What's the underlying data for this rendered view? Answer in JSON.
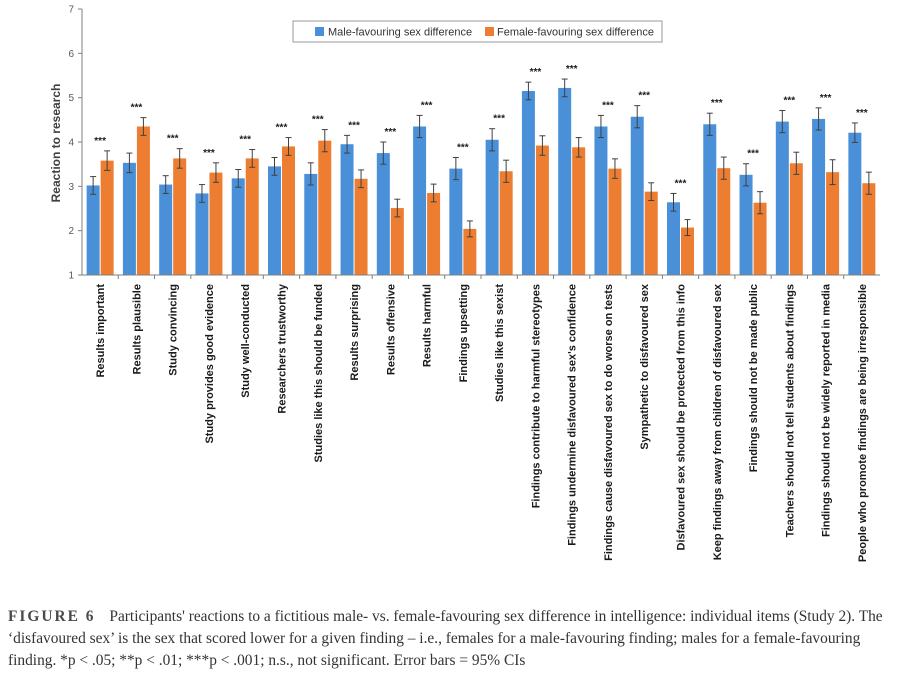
{
  "chart_data": {
    "type": "bar",
    "ylabel": "Reaction to research",
    "ylim": [
      1,
      7
    ],
    "yticks": [
      1,
      2,
      3,
      4,
      5,
      6,
      7
    ],
    "legend_position": "top-center",
    "categories": [
      "Results important",
      "Results plausible",
      "Study convincing",
      "Study provides good evidence",
      "Study well-conducted",
      "Researchers trustworthy",
      "Studies like this should be funded",
      "Results surprising",
      "Results offensive",
      "Results harmful",
      "Findings upsetting",
      "Studies like this sexist",
      "Findings contribute to harmful stereotypes",
      "Findings undermine disfavoured sex's confidence",
      "Findings cause disfavoured sex to do worse on tests",
      "Sympathetic to disfavoured sex",
      "Disfavoured sex should be protected from this info",
      "Keep findings away from children of disfavoured sex",
      "Findings should not be made public",
      "Teachers should not tell students about findings",
      "Findings should not be widely reported in media",
      "People who promote findings are being irresponsible"
    ],
    "series": [
      {
        "name": "Male-favouring sex difference",
        "color": "#4a90d9",
        "values": [
          3.02,
          3.53,
          3.04,
          2.84,
          3.18,
          3.45,
          3.28,
          3.95,
          3.75,
          4.35,
          3.4,
          4.05,
          5.15,
          5.22,
          4.35,
          4.57,
          2.64,
          4.4,
          3.26,
          4.46,
          4.52,
          4.21
        ],
        "errors": [
          0.2,
          0.22,
          0.2,
          0.2,
          0.2,
          0.2,
          0.25,
          0.2,
          0.25,
          0.25,
          0.25,
          0.25,
          0.2,
          0.2,
          0.25,
          0.25,
          0.2,
          0.25,
          0.25,
          0.25,
          0.25,
          0.22
        ]
      },
      {
        "name": "Female-favouring sex difference",
        "color": "#ed7d31",
        "values": [
          3.58,
          4.35,
          3.63,
          3.31,
          3.63,
          3.9,
          4.03,
          3.17,
          2.51,
          2.85,
          2.04,
          3.34,
          3.92,
          3.88,
          3.4,
          2.88,
          2.07,
          3.41,
          2.63,
          3.52,
          3.32,
          3.07
        ],
        "errors": [
          0.22,
          0.2,
          0.22,
          0.22,
          0.2,
          0.2,
          0.25,
          0.2,
          0.2,
          0.2,
          0.18,
          0.25,
          0.22,
          0.22,
          0.22,
          0.2,
          0.18,
          0.25,
          0.25,
          0.25,
          0.28,
          0.25
        ]
      }
    ],
    "annotations": [
      "***",
      "***",
      "***",
      "***",
      "***",
      "***",
      "***",
      "***",
      "***",
      "***",
      "***",
      "***",
      "***",
      "***",
      "***",
      "***",
      "***",
      "***",
      "***",
      "***",
      "***",
      "***"
    ]
  },
  "caption": {
    "label": "FIGURE 6",
    "text": "Participants' reactions to a fictitious male- vs. female-favouring sex difference in intelligence: individual items (Study 2). The ‘disfavoured sex’ is the sex that scored lower for a given finding – i.e., females for a male-favouring finding; males for a female-favouring finding. *p < .05; **p < .01; ***p < .001; n.s., not significant. Error bars = 95% CIs"
  }
}
